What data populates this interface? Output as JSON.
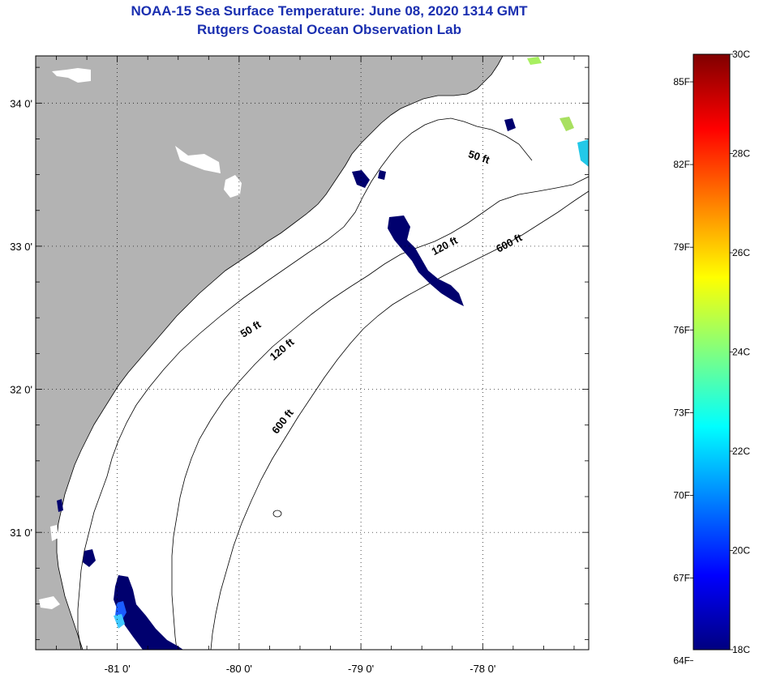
{
  "title": {
    "line1": "NOAA-15 Sea Surface Temperature:  June 08, 2020 1314 GMT",
    "line2": "Rutgers Coastal Ocean Observation Lab"
  },
  "map": {
    "lon_range": [
      -81.67,
      -77.13
    ],
    "lat_range": [
      30.18,
      34.33
    ],
    "lon_ticks": [
      {
        "value": -81,
        "label": "-81 0'"
      },
      {
        "value": -80,
        "label": "-80 0'"
      },
      {
        "value": -79,
        "label": "-79 0'"
      },
      {
        "value": -78,
        "label": "-78 0'"
      }
    ],
    "lat_ticks": [
      {
        "value": 34,
        "label": "34 0'"
      },
      {
        "value": 33,
        "label": "33 0'"
      },
      {
        "value": 32,
        "label": "32 0'"
      },
      {
        "value": 31,
        "label": "31 0'"
      }
    ],
    "land_color": "#b3b3b3",
    "sea_color": "#ffffff",
    "contour_labels": [
      {
        "text": "50 ft",
        "lon": -78.04,
        "lat": 33.6,
        "angle": 18
      },
      {
        "text": "120 ft",
        "lon": -78.3,
        "lat": 32.98,
        "angle": -28
      },
      {
        "text": "600 ft",
        "lon": -77.77,
        "lat": 33.0,
        "angle": -28
      },
      {
        "text": "50 ft",
        "lon": -79.89,
        "lat": 32.4,
        "angle": -32
      },
      {
        "text": "120 ft",
        "lon": -79.63,
        "lat": 32.26,
        "angle": -40
      },
      {
        "text": "600 ft",
        "lon": -79.62,
        "lat": 31.76,
        "angle": -52
      }
    ]
  },
  "colorbar": {
    "min_c": 18,
    "max_c": 30,
    "celsius_labels": [
      "30C",
      "28C",
      "26C",
      "24C",
      "22C",
      "20C",
      "18C"
    ],
    "fahrenheit_labels": [
      "85F",
      "82F",
      "79F",
      "76F",
      "73F",
      "70F",
      "67F",
      "64F"
    ],
    "colors": [
      "#000080",
      "#0000ff",
      "#0080ff",
      "#00ffff",
      "#80ff80",
      "#ffff00",
      "#ff8000",
      "#ff0000",
      "#800000"
    ]
  }
}
